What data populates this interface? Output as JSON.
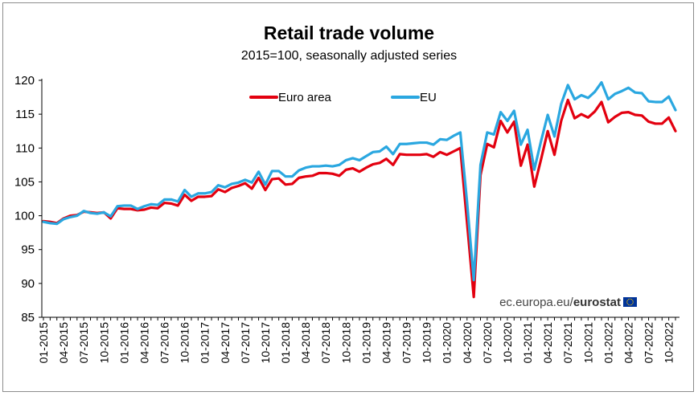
{
  "chart_data": {
    "type": "line",
    "title": "Retail trade volume",
    "subtitle": "2015=100, seasonally adjusted series",
    "xlabel": "",
    "ylabel": "",
    "ylim": [
      85,
      120
    ],
    "yticks": [
      85,
      90,
      95,
      100,
      105,
      110,
      115,
      120
    ],
    "grid": false,
    "legend_placement": "top-center",
    "x": [
      "01-2015",
      "02-2015",
      "03-2015",
      "04-2015",
      "05-2015",
      "06-2015",
      "07-2015",
      "08-2015",
      "09-2015",
      "10-2015",
      "11-2015",
      "12-2015",
      "01-2016",
      "02-2016",
      "03-2016",
      "04-2016",
      "05-2016",
      "06-2016",
      "07-2016",
      "08-2016",
      "09-2016",
      "10-2016",
      "11-2016",
      "12-2016",
      "01-2017",
      "02-2017",
      "03-2017",
      "04-2017",
      "05-2017",
      "06-2017",
      "07-2017",
      "08-2017",
      "09-2017",
      "10-2017",
      "11-2017",
      "12-2017",
      "01-2018",
      "02-2018",
      "03-2018",
      "04-2018",
      "05-2018",
      "06-2018",
      "07-2018",
      "08-2018",
      "09-2018",
      "10-2018",
      "11-2018",
      "12-2018",
      "01-2019",
      "02-2019",
      "03-2019",
      "04-2019",
      "05-2019",
      "06-2019",
      "07-2019",
      "08-2019",
      "09-2019",
      "10-2019",
      "11-2019",
      "12-2019",
      "01-2020",
      "02-2020",
      "03-2020",
      "04-2020",
      "05-2020",
      "06-2020",
      "07-2020",
      "08-2020",
      "09-2020",
      "10-2020",
      "11-2020",
      "12-2020",
      "01-2021",
      "02-2021",
      "03-2021",
      "04-2021",
      "05-2021",
      "06-2021",
      "07-2021",
      "08-2021",
      "09-2021",
      "10-2021",
      "11-2021",
      "12-2021",
      "01-2022",
      "02-2022",
      "03-2022",
      "04-2022",
      "05-2022",
      "06-2022",
      "07-2022",
      "08-2022",
      "09-2022",
      "10-2022",
      "11-2022"
    ],
    "xticks": [
      "01-2015",
      "04-2015",
      "07-2015",
      "10-2015",
      "01-2016",
      "04-2016",
      "07-2016",
      "10-2016",
      "01-2017",
      "04-2017",
      "07-2017",
      "10-2017",
      "01-2018",
      "04-2018",
      "07-2018",
      "10-2018",
      "01-2019",
      "04-2019",
      "07-2019",
      "10-2019",
      "01-2020",
      "04-2020",
      "07-2020",
      "10-2020",
      "01-2021",
      "04-2021",
      "07-2021",
      "10-2021",
      "01-2022",
      "04-2022",
      "07-2022",
      "10-2022"
    ],
    "series": [
      {
        "name": "Euro area",
        "color": "#e3000f",
        "values": [
          99.2,
          99.1,
          98.9,
          99.6,
          100.0,
          100.1,
          100.6,
          100.5,
          100.4,
          100.5,
          99.6,
          101.1,
          101.0,
          101.0,
          100.8,
          100.9,
          101.2,
          101.1,
          101.9,
          101.8,
          101.5,
          103.1,
          102.2,
          102.8,
          102.8,
          102.9,
          103.9,
          103.5,
          104.1,
          104.4,
          104.8,
          104.0,
          105.6,
          103.8,
          105.4,
          105.5,
          104.6,
          104.7,
          105.6,
          105.8,
          105.9,
          106.3,
          106.3,
          106.2,
          105.9,
          106.8,
          107.0,
          106.5,
          107.1,
          107.6,
          107.8,
          108.4,
          107.5,
          109.1,
          109.0,
          109.0,
          109.0,
          109.1,
          108.7,
          109.4,
          109.0,
          109.5,
          110.0,
          99.0,
          88.0,
          106.0,
          110.6,
          110.1,
          114.0,
          112.3,
          113.9,
          107.4,
          110.5,
          104.3,
          108.3,
          112.5,
          109.0,
          114.0,
          117.1,
          114.4,
          115.0,
          114.5,
          115.4,
          116.8,
          113.8,
          114.6,
          115.2,
          115.3,
          114.9,
          114.8,
          113.9,
          113.6,
          113.6,
          114.5,
          112.5
        ]
      },
      {
        "name": "EU",
        "color": "#2aa7e0",
        "values": [
          99.1,
          98.9,
          98.8,
          99.5,
          99.8,
          100.0,
          100.7,
          100.4,
          100.3,
          100.5,
          99.9,
          101.4,
          101.5,
          101.5,
          101.0,
          101.4,
          101.7,
          101.6,
          102.4,
          102.4,
          102.1,
          103.8,
          102.8,
          103.3,
          103.3,
          103.5,
          104.5,
          104.2,
          104.7,
          104.9,
          105.3,
          104.9,
          106.5,
          104.6,
          106.6,
          106.6,
          105.8,
          105.8,
          106.7,
          107.1,
          107.3,
          107.3,
          107.4,
          107.3,
          107.5,
          108.2,
          108.5,
          108.2,
          108.8,
          109.4,
          109.5,
          110.2,
          109.1,
          110.6,
          110.6,
          110.7,
          110.8,
          110.8,
          110.5,
          111.3,
          111.2,
          111.8,
          112.3,
          102.0,
          90.5,
          107.5,
          112.3,
          112.0,
          115.3,
          114.0,
          115.5,
          110.5,
          112.7,
          106.8,
          111.0,
          114.9,
          111.7,
          116.5,
          119.3,
          117.2,
          117.8,
          117.4,
          118.3,
          119.7,
          117.2,
          118.0,
          118.4,
          118.9,
          118.2,
          118.1,
          116.9,
          116.8,
          116.8,
          117.6,
          115.6
        ]
      }
    ]
  },
  "source": {
    "text": "ec.europa.eu/",
    "bold": "eurostat"
  },
  "flag_color": "#003399"
}
